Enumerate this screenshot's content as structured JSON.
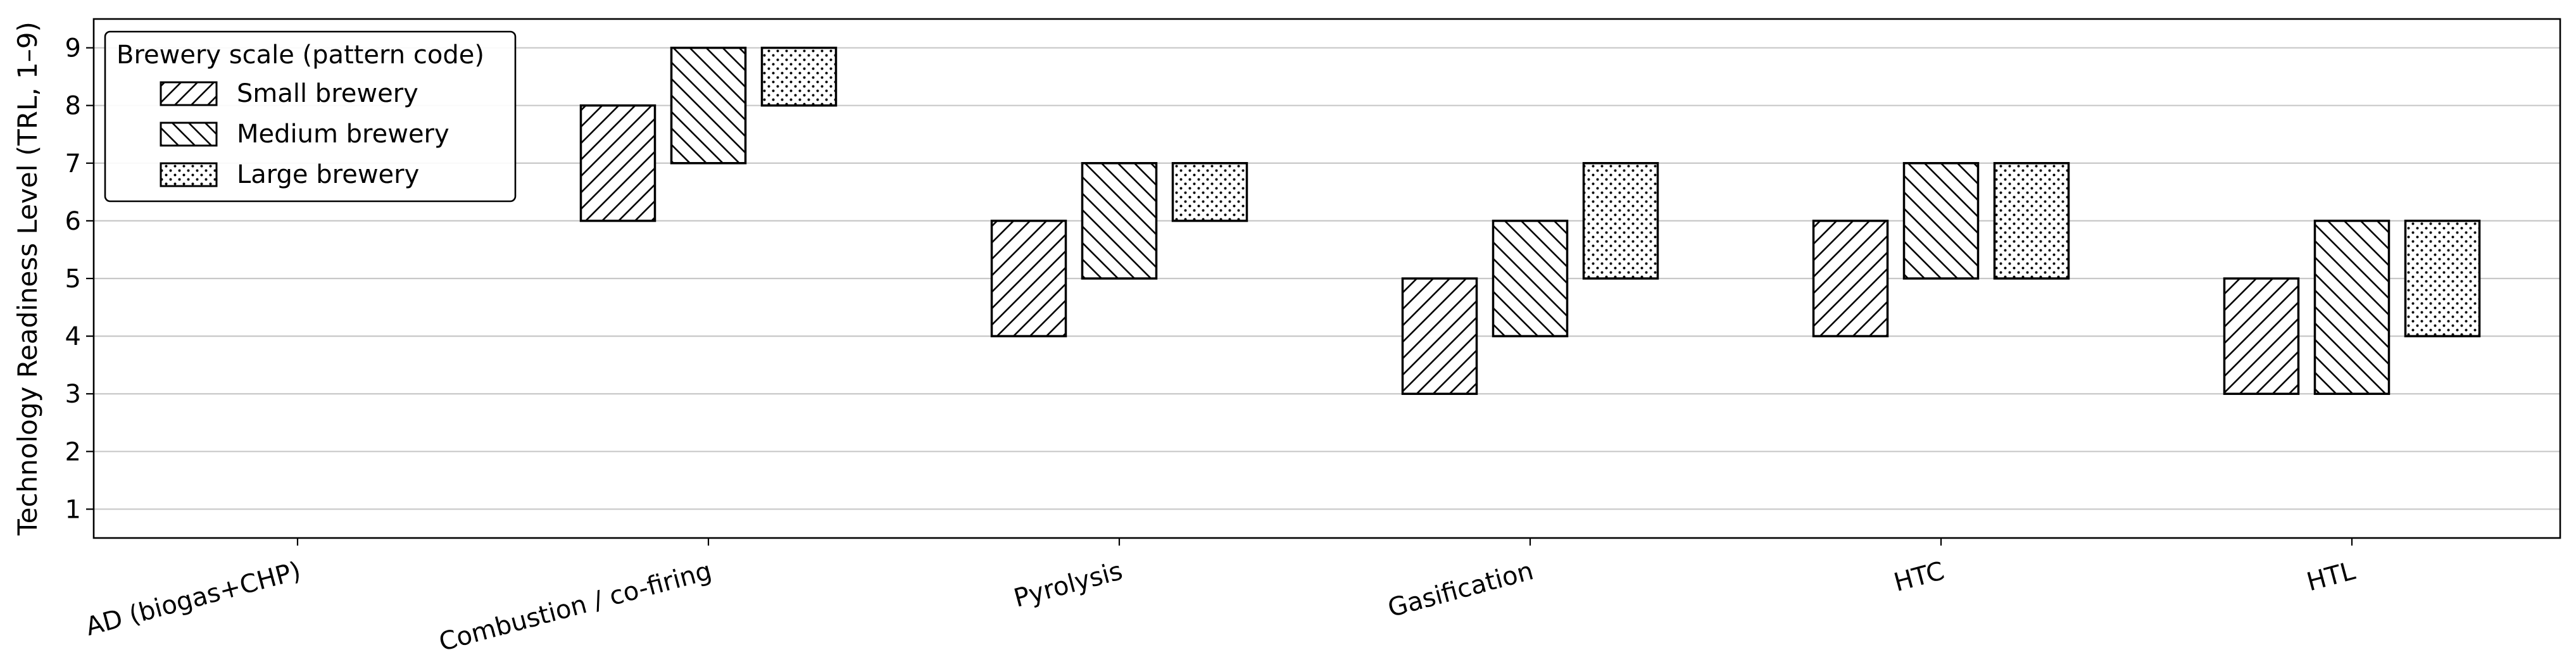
{
  "chart_data": {
    "type": "bar",
    "subtype": "floating-range-bar",
    "title": "",
    "xlabel": "",
    "ylabel": "Technology Readiness Level (TRL, 1–9)",
    "ylim": [
      0.5,
      9.5
    ],
    "yticks": [
      1,
      2,
      3,
      4,
      5,
      6,
      7,
      8,
      9
    ],
    "grid": "horizontal",
    "categories": [
      "AD (biogas+CHP)",
      "Combustion / co-firing",
      "Pyrolysis",
      "Gasification",
      "HTC",
      "HTL"
    ],
    "legend": {
      "title": "Brewery scale (pattern code)",
      "placement": "top-left"
    },
    "series": [
      {
        "name": "Small brewery",
        "pattern": "diagonal-up",
        "ranges": [
          null,
          [
            6,
            8
          ],
          [
            4,
            6
          ],
          [
            3,
            5
          ],
          [
            4,
            6
          ],
          [
            3,
            5
          ]
        ]
      },
      {
        "name": "Medium brewery",
        "pattern": "diagonal-down",
        "ranges": [
          null,
          [
            7,
            9
          ],
          [
            5,
            7
          ],
          [
            4,
            6
          ],
          [
            5,
            7
          ],
          [
            3,
            6
          ]
        ]
      },
      {
        "name": "Large brewery",
        "pattern": "dots",
        "ranges": [
          null,
          [
            8,
            9
          ],
          [
            6,
            7
          ],
          [
            5,
            7
          ],
          [
            5,
            7
          ],
          [
            4,
            6
          ]
        ]
      }
    ]
  }
}
